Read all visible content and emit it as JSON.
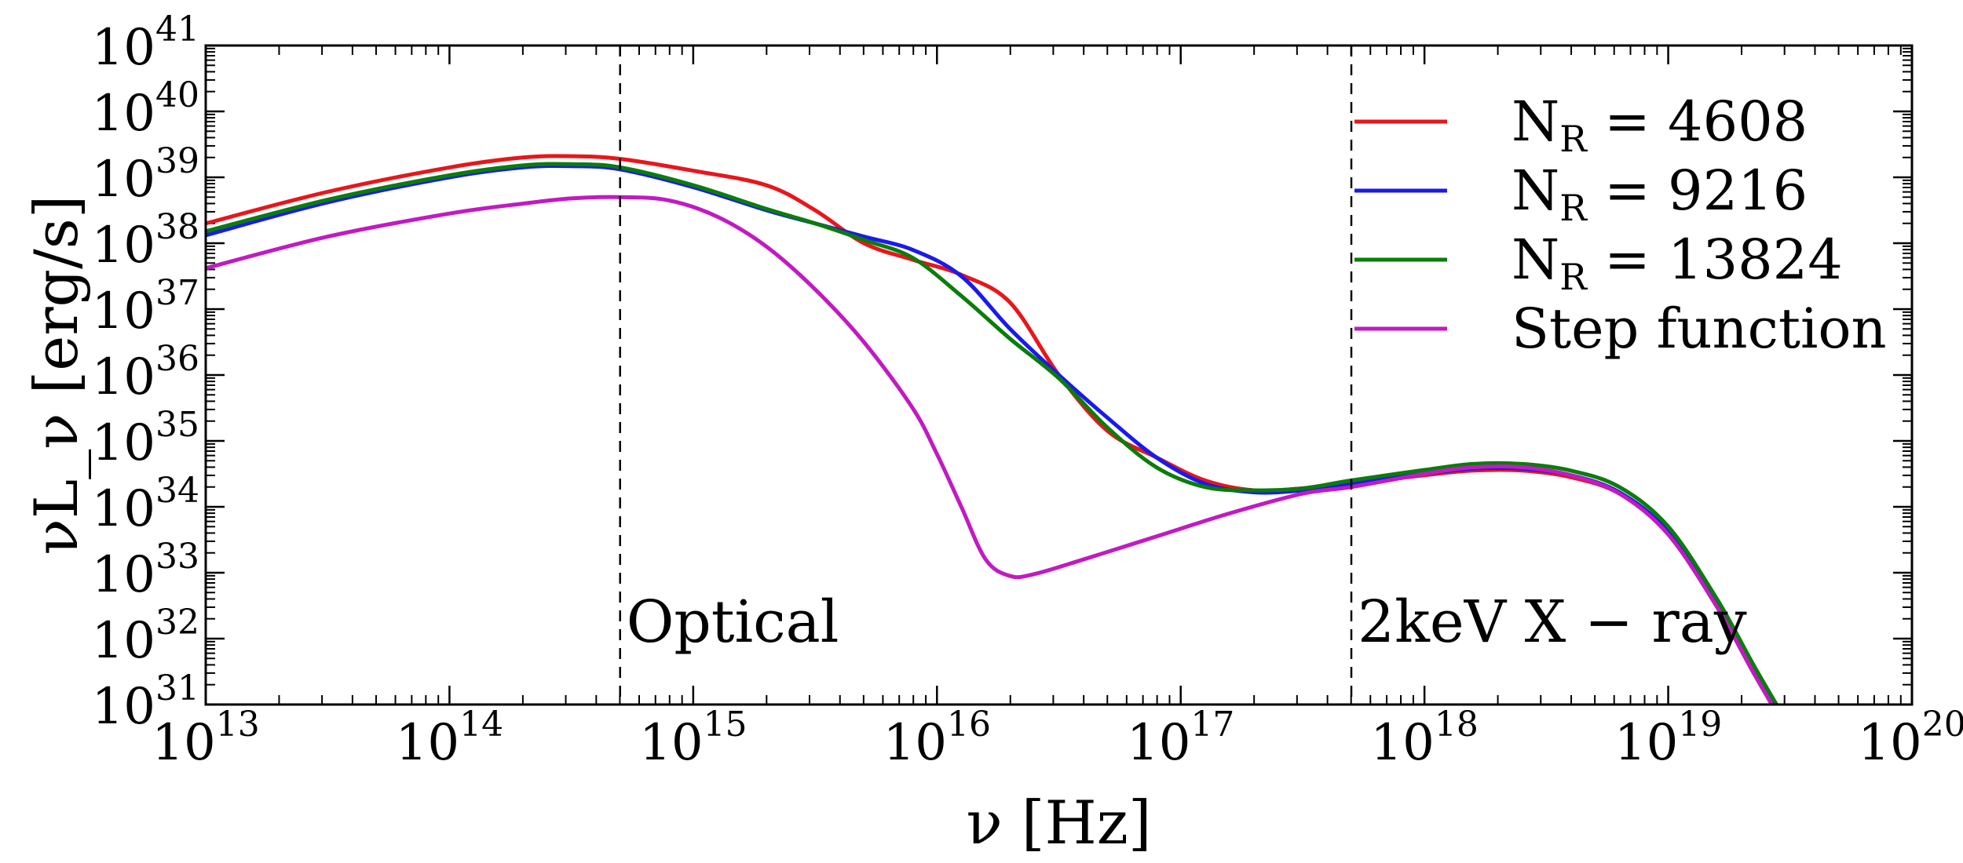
{
  "chart_data": {
    "type": "line",
    "title": "",
    "xscale": "log",
    "yscale": "log",
    "xlabel": "ν [Hz]",
    "ylabel": "νL_ν [erg/s]",
    "xlim_exp": [
      13,
      20
    ],
    "ylim_exp": [
      31,
      41
    ],
    "x_ticks": [
      {
        "base": "10",
        "exp": "13",
        "value_exp": 13
      },
      {
        "base": "10",
        "exp": "14",
        "value_exp": 14
      },
      {
        "base": "10",
        "exp": "15",
        "value_exp": 15
      },
      {
        "base": "10",
        "exp": "16",
        "value_exp": 16
      },
      {
        "base": "10",
        "exp": "17",
        "value_exp": 17
      },
      {
        "base": "10",
        "exp": "18",
        "value_exp": 18
      },
      {
        "base": "10",
        "exp": "19",
        "value_exp": 19
      },
      {
        "base": "10",
        "exp": "20",
        "value_exp": 20
      }
    ],
    "y_ticks": [
      {
        "base": "10",
        "exp": "31",
        "value_exp": 31
      },
      {
        "base": "10",
        "exp": "32",
        "value_exp": 32
      },
      {
        "base": "10",
        "exp": "33",
        "value_exp": 33
      },
      {
        "base": "10",
        "exp": "34",
        "value_exp": 34
      },
      {
        "base": "10",
        "exp": "35",
        "value_exp": 35
      },
      {
        "base": "10",
        "exp": "36",
        "value_exp": 36
      },
      {
        "base": "10",
        "exp": "37",
        "value_exp": 37
      },
      {
        "base": "10",
        "exp": "38",
        "value_exp": 38
      },
      {
        "base": "10",
        "exp": "39",
        "value_exp": 39
      },
      {
        "base": "10",
        "exp": "40",
        "value_exp": 40
      },
      {
        "base": "10",
        "exp": "41",
        "value_exp": 41
      }
    ],
    "vlines": [
      {
        "x_exp": 14.7,
        "label": "Optical",
        "style": "dashed"
      },
      {
        "x_exp": 17.7,
        "label": "2keV X − ray",
        "style": "dashed"
      }
    ],
    "legend_position": "top-right",
    "series": [
      {
        "name": "N_R = 4608",
        "label_main": "N",
        "label_sub": "R",
        "label_rest": " = 4608",
        "color": "#e8161b",
        "x_exp": [
          13.0,
          13.5,
          14.0,
          14.3,
          14.5,
          14.7,
          15.0,
          15.3,
          15.5,
          15.7,
          15.9,
          16.1,
          16.3,
          16.5,
          16.7,
          16.9,
          17.1,
          17.3,
          17.5,
          17.7,
          18.0,
          18.2,
          18.4,
          18.6,
          18.8,
          19.0,
          19.2,
          19.35,
          19.46
        ],
        "y_exp": [
          38.3,
          38.78,
          39.15,
          39.3,
          39.32,
          39.28,
          39.1,
          38.88,
          38.5,
          38.0,
          37.75,
          37.52,
          37.1,
          36.0,
          35.15,
          34.75,
          34.4,
          34.25,
          34.28,
          34.35,
          34.48,
          34.55,
          34.55,
          34.45,
          34.2,
          33.6,
          32.5,
          31.5,
          30.8
        ]
      },
      {
        "name": "N_R = 9216",
        "label_main": "N",
        "label_sub": "R",
        "label_rest": " = 9216",
        "color": "#1a1aeb",
        "x_exp": [
          13.0,
          13.5,
          14.0,
          14.3,
          14.5,
          14.7,
          15.0,
          15.3,
          15.5,
          15.7,
          15.9,
          16.1,
          16.3,
          16.5,
          16.7,
          16.9,
          17.1,
          17.3,
          17.5,
          17.7,
          18.0,
          18.2,
          18.4,
          18.6,
          18.8,
          19.0,
          19.2,
          19.35,
          19.46
        ],
        "y_exp": [
          38.12,
          38.62,
          39.0,
          39.15,
          39.17,
          39.12,
          38.85,
          38.5,
          38.3,
          38.1,
          37.9,
          37.5,
          36.7,
          36.0,
          35.35,
          34.75,
          34.35,
          34.22,
          34.25,
          34.35,
          34.5,
          34.58,
          34.58,
          34.48,
          34.22,
          33.62,
          32.52,
          31.52,
          30.82
        ]
      },
      {
        "name": "N_R = 13824",
        "label_main": "N",
        "label_sub": "R",
        "label_rest": " = 13824",
        "color": "#0a7d0a",
        "x_exp": [
          13.0,
          13.5,
          14.0,
          14.3,
          14.5,
          14.7,
          15.0,
          15.3,
          15.5,
          15.7,
          15.9,
          16.1,
          16.3,
          16.5,
          16.7,
          16.9,
          17.1,
          17.3,
          17.5,
          17.7,
          18.0,
          18.2,
          18.4,
          18.6,
          18.8,
          19.0,
          19.2,
          19.35,
          19.46
        ],
        "y_exp": [
          38.18,
          38.66,
          39.03,
          39.18,
          39.2,
          39.15,
          38.88,
          38.52,
          38.3,
          38.05,
          37.78,
          37.2,
          36.55,
          35.95,
          35.2,
          34.6,
          34.3,
          34.25,
          34.28,
          34.4,
          34.56,
          34.65,
          34.65,
          34.55,
          34.3,
          33.7,
          32.6,
          31.6,
          30.9
        ]
      },
      {
        "name": "Step function",
        "label_main": "Step function",
        "label_sub": "",
        "label_rest": "",
        "color": "#c21ac2",
        "x_exp": [
          13.0,
          13.5,
          14.0,
          14.3,
          14.5,
          14.7,
          14.9,
          15.1,
          15.3,
          15.5,
          15.7,
          15.9,
          16.0,
          16.1,
          16.2,
          16.3,
          16.4,
          16.6,
          16.9,
          17.2,
          17.5,
          17.7,
          18.0,
          18.2,
          18.4,
          18.6,
          18.8,
          19.0,
          19.2,
          19.35,
          19.46
        ],
        "y_exp": [
          37.62,
          38.1,
          38.45,
          38.6,
          38.68,
          38.7,
          38.65,
          38.4,
          37.95,
          37.3,
          36.5,
          35.5,
          34.8,
          34.0,
          33.2,
          32.95,
          32.98,
          33.2,
          33.55,
          33.9,
          34.2,
          34.3,
          34.5,
          34.6,
          34.6,
          34.48,
          34.2,
          33.58,
          32.48,
          31.48,
          30.78
        ]
      }
    ]
  }
}
